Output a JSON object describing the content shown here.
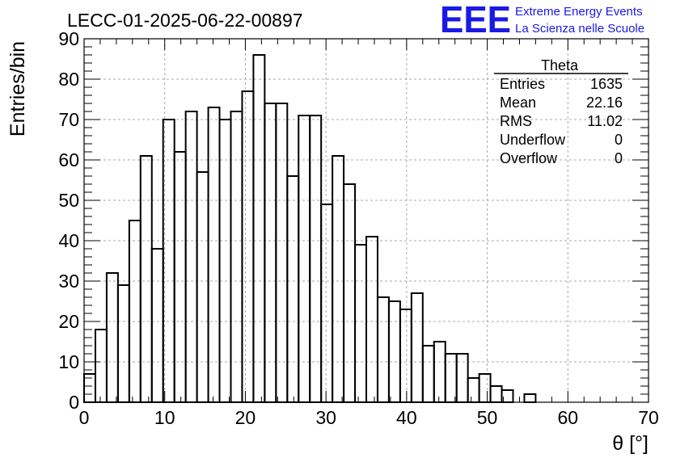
{
  "chart_data": {
    "type": "bar",
    "histogram": true,
    "title": "LECC-01-2025-06-22-00897",
    "xlabel": "θ [°]",
    "ylabel": "Entries/bin",
    "xlim": [
      0,
      70
    ],
    "ylim": [
      0,
      90
    ],
    "grid": true,
    "x_ticks": [
      "0",
      "10",
      "20",
      "30",
      "40",
      "50",
      "60",
      "70"
    ],
    "y_ticks": [
      "0",
      "10",
      "20",
      "30",
      "40",
      "50",
      "60",
      "70",
      "80",
      "90"
    ],
    "bin_edges": [
      0,
      1.4,
      2.8,
      4.2,
      5.6,
      7,
      8.4,
      9.8,
      11.2,
      12.6,
      14,
      15.4,
      16.8,
      18.2,
      19.6,
      21,
      22.4,
      23.8,
      25.2,
      26.6,
      28,
      29.4,
      30.8,
      32.2,
      33.6,
      35,
      36.4,
      37.8,
      39.2,
      40.6,
      42,
      43.4,
      44.8,
      46.2,
      47.6,
      49,
      50.4,
      51.8,
      53.2,
      54.6,
      56,
      57.4,
      58.8,
      60.2,
      61.6,
      63,
      64.4,
      65.8,
      67.2,
      68.6,
      70
    ],
    "values": [
      7,
      18,
      32,
      29,
      45,
      61,
      38,
      70,
      62,
      72,
      57,
      73,
      70,
      72,
      77,
      86,
      74,
      74,
      56,
      71,
      71,
      49,
      61,
      54,
      39,
      41,
      26,
      25,
      23,
      27,
      14,
      15,
      12,
      12,
      6,
      7,
      4,
      3,
      0,
      2,
      0,
      0,
      0,
      0,
      0,
      0,
      0,
      0,
      0,
      0
    ],
    "stats_box": {
      "title": "Theta",
      "rows": [
        {
          "label": "Entries",
          "value": "1635"
        },
        {
          "label": "Mean",
          "value": "22.16"
        },
        {
          "label": "RMS",
          "value": "11.02"
        },
        {
          "label": "Underflow",
          "value": "0"
        },
        {
          "label": "Overflow",
          "value": "0"
        }
      ],
      "placement": "top-right"
    },
    "logo": {
      "text": "EEE",
      "line1": "Extreme Energy Events",
      "line2": "La Scienza nelle Scuole",
      "color": "#1a1ae6"
    }
  }
}
